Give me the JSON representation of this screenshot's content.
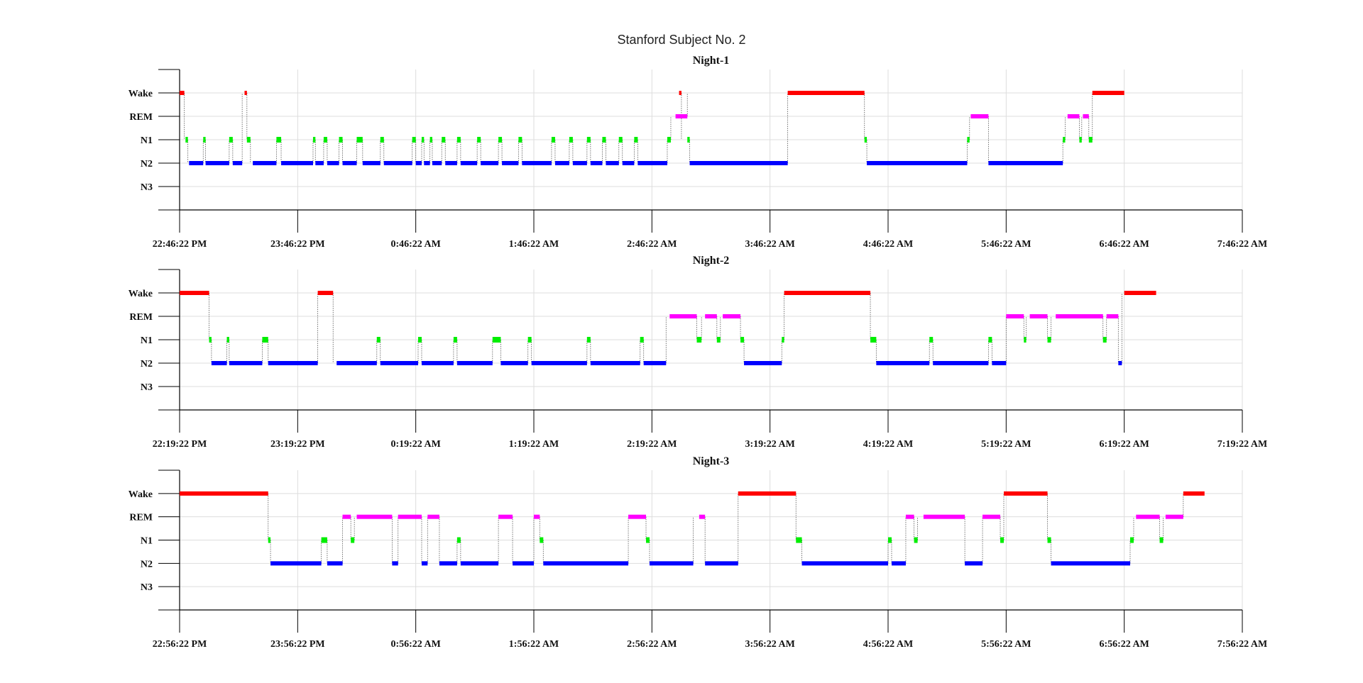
{
  "figure_title": "Stanford Subject No. 2",
  "colors": {
    "Wake": "#ff0000",
    "REM": "#ff00ff",
    "N1": "#00ee00",
    "N2": "#0000ff",
    "N3": "#0000aa",
    "grid": "#dddddd",
    "axis": "#000000"
  },
  "chart_data": [
    {
      "type": "line",
      "title": "Night-1",
      "yticklabels": [
        "Wake",
        "REM",
        "N1",
        "N2",
        "N3"
      ],
      "xticklabels": [
        "22:46:22 PM",
        "23:46:22 PM",
        "0:46:22 AM",
        "1:46:22 AM",
        "2:46:22 AM",
        "3:46:22 AM",
        "4:46:22 AM",
        "5:46:22 AM",
        "6:46:22 AM",
        "7:46:22 AM"
      ],
      "xlim_hours": [
        0,
        9
      ],
      "ylim": [
        -1,
        5
      ],
      "grid": true,
      "segments": [
        [
          "Wake",
          0.0,
          0.04
        ],
        [
          "N1",
          0.05,
          0.07
        ],
        [
          "N2",
          0.08,
          0.2
        ],
        [
          "N1",
          0.2,
          0.22
        ],
        [
          "N2",
          0.22,
          0.42
        ],
        [
          "N1",
          0.42,
          0.45
        ],
        [
          "N2",
          0.45,
          0.53
        ],
        [
          "Wake",
          0.55,
          0.57
        ],
        [
          "N1",
          0.57,
          0.6
        ],
        [
          "N2",
          0.62,
          0.82
        ],
        [
          "N1",
          0.82,
          0.86
        ],
        [
          "N2",
          0.86,
          1.13
        ],
        [
          "N1",
          1.13,
          1.15
        ],
        [
          "N2",
          1.15,
          1.22
        ],
        [
          "N1",
          1.22,
          1.25
        ],
        [
          "N2",
          1.25,
          1.35
        ],
        [
          "N1",
          1.35,
          1.38
        ],
        [
          "N2",
          1.38,
          1.5
        ],
        [
          "N1",
          1.5,
          1.55
        ],
        [
          "N2",
          1.55,
          1.7
        ],
        [
          "N1",
          1.7,
          1.73
        ],
        [
          "N2",
          1.73,
          1.97
        ],
        [
          "N1",
          1.97,
          2.0
        ],
        [
          "N2",
          2.0,
          2.05
        ],
        [
          "N1",
          2.05,
          2.07
        ],
        [
          "N2",
          2.07,
          2.12
        ],
        [
          "N1",
          2.12,
          2.14
        ],
        [
          "N2",
          2.14,
          2.22
        ],
        [
          "N1",
          2.22,
          2.25
        ],
        [
          "N2",
          2.25,
          2.35
        ],
        [
          "N1",
          2.35,
          2.38
        ],
        [
          "N2",
          2.38,
          2.52
        ],
        [
          "N1",
          2.52,
          2.55
        ],
        [
          "N2",
          2.55,
          2.7
        ],
        [
          "N1",
          2.7,
          2.73
        ],
        [
          "N2",
          2.73,
          2.87
        ],
        [
          "N1",
          2.87,
          2.9
        ],
        [
          "N2",
          2.9,
          3.15
        ],
        [
          "N1",
          3.15,
          3.18
        ],
        [
          "N2",
          3.18,
          3.3
        ],
        [
          "N1",
          3.3,
          3.33
        ],
        [
          "N2",
          3.33,
          3.45
        ],
        [
          "N1",
          3.45,
          3.48
        ],
        [
          "N2",
          3.48,
          3.58
        ],
        [
          "N1",
          3.58,
          3.61
        ],
        [
          "N2",
          3.61,
          3.72
        ],
        [
          "N1",
          3.72,
          3.75
        ],
        [
          "N2",
          3.75,
          3.85
        ],
        [
          "N1",
          3.85,
          3.88
        ],
        [
          "N2",
          3.88,
          4.13
        ],
        [
          "N1",
          4.13,
          4.16
        ],
        [
          "REM",
          4.2,
          4.3
        ],
        [
          "Wake",
          4.23,
          4.25
        ],
        [
          "N1",
          4.3,
          4.32
        ],
        [
          "N2",
          4.32,
          5.15
        ],
        [
          "Wake",
          5.15,
          5.8
        ],
        [
          "N1",
          5.8,
          5.82
        ],
        [
          "N2",
          5.82,
          6.67
        ],
        [
          "N1",
          6.67,
          6.69
        ],
        [
          "REM",
          6.7,
          6.85
        ],
        [
          "N2",
          6.85,
          7.48
        ],
        [
          "N1",
          7.48,
          7.5
        ],
        [
          "REM",
          7.52,
          7.62
        ],
        [
          "N1",
          7.62,
          7.64
        ],
        [
          "REM",
          7.65,
          7.7
        ],
        [
          "N1",
          7.7,
          7.73
        ],
        [
          "Wake",
          7.73,
          8.0
        ]
      ]
    },
    {
      "type": "line",
      "title": "Night-2",
      "yticklabels": [
        "Wake",
        "REM",
        "N1",
        "N2",
        "N3"
      ],
      "xticklabels": [
        "22:19:22 PM",
        "23:19:22 PM",
        "0:19:22 AM",
        "1:19:22 AM",
        "2:19:22 AM",
        "3:19:22 AM",
        "4:19:22 AM",
        "5:19:22 AM",
        "6:19:22 AM",
        "7:19:22 AM"
      ],
      "xlim_hours": [
        0,
        9
      ],
      "ylim": [
        -1,
        5
      ],
      "grid": true,
      "segments": [
        [
          "Wake",
          0.0,
          0.25
        ],
        [
          "N1",
          0.25,
          0.27
        ],
        [
          "N2",
          0.27,
          0.4
        ],
        [
          "N1",
          0.4,
          0.42
        ],
        [
          "N2",
          0.42,
          0.7
        ],
        [
          "N1",
          0.7,
          0.75
        ],
        [
          "N2",
          0.75,
          1.17
        ],
        [
          "Wake",
          1.17,
          1.3
        ],
        [
          "N2",
          1.33,
          1.67
        ],
        [
          "N1",
          1.67,
          1.7
        ],
        [
          "N2",
          1.7,
          2.02
        ],
        [
          "N1",
          2.02,
          2.05
        ],
        [
          "N2",
          2.05,
          2.32
        ],
        [
          "N1",
          2.32,
          2.35
        ],
        [
          "N2",
          2.35,
          2.65
        ],
        [
          "N1",
          2.65,
          2.72
        ],
        [
          "N2",
          2.72,
          2.95
        ],
        [
          "N1",
          2.95,
          2.98
        ],
        [
          "N2",
          2.98,
          3.45
        ],
        [
          "N1",
          3.45,
          3.48
        ],
        [
          "N2",
          3.48,
          3.9
        ],
        [
          "N1",
          3.9,
          3.93
        ],
        [
          "N2",
          3.93,
          4.12
        ],
        [
          "REM",
          4.15,
          4.38
        ],
        [
          "N1",
          4.38,
          4.42
        ],
        [
          "REM",
          4.45,
          4.55
        ],
        [
          "N1",
          4.55,
          4.58
        ],
        [
          "REM",
          4.6,
          4.75
        ],
        [
          "N1",
          4.75,
          4.78
        ],
        [
          "N2",
          4.78,
          5.1
        ],
        [
          "N1",
          5.1,
          5.12
        ],
        [
          "Wake",
          5.12,
          5.85
        ],
        [
          "N1",
          5.85,
          5.9
        ],
        [
          "N2",
          5.9,
          6.35
        ],
        [
          "N1",
          6.35,
          6.38
        ],
        [
          "N2",
          6.38,
          6.85
        ],
        [
          "N1",
          6.85,
          6.88
        ],
        [
          "N2",
          6.88,
          7.0
        ],
        [
          "REM",
          7.0,
          7.15
        ],
        [
          "N1",
          7.15,
          7.17
        ],
        [
          "REM",
          7.2,
          7.35
        ],
        [
          "N1",
          7.35,
          7.38
        ],
        [
          "REM",
          7.42,
          7.82
        ],
        [
          "N1",
          7.82,
          7.85
        ],
        [
          "REM",
          7.85,
          7.95
        ],
        [
          "N2",
          7.95,
          7.98
        ],
        [
          "Wake",
          8.0,
          8.27
        ]
      ]
    },
    {
      "type": "line",
      "title": "Night-3",
      "yticklabels": [
        "Wake",
        "REM",
        "N1",
        "N2",
        "N3"
      ],
      "xticklabels": [
        "22:56:22 PM",
        "23:56:22 PM",
        "0:56:22 AM",
        "1:56:22 AM",
        "2:56:22 AM",
        "3:56:22 AM",
        "4:56:22 AM",
        "5:56:22 AM",
        "6:56:22 AM",
        "7:56:22 AM"
      ],
      "xlim_hours": [
        0,
        9
      ],
      "ylim": [
        -1,
        5
      ],
      "grid": true,
      "segments": [
        [
          "Wake",
          0.0,
          0.75
        ],
        [
          "N1",
          0.75,
          0.77
        ],
        [
          "N2",
          0.77,
          1.2
        ],
        [
          "N1",
          1.2,
          1.25
        ],
        [
          "N2",
          1.25,
          1.38
        ],
        [
          "REM",
          1.38,
          1.45
        ],
        [
          "N1",
          1.45,
          1.48
        ],
        [
          "REM",
          1.5,
          1.8
        ],
        [
          "N2",
          1.8,
          1.85
        ],
        [
          "REM",
          1.85,
          2.05
        ],
        [
          "N2",
          2.05,
          2.1
        ],
        [
          "REM",
          2.1,
          2.2
        ],
        [
          "N2",
          2.2,
          2.35
        ],
        [
          "N1",
          2.35,
          2.38
        ],
        [
          "N2",
          2.38,
          2.7
        ],
        [
          "REM",
          2.7,
          2.82
        ],
        [
          "N2",
          2.82,
          3.0
        ],
        [
          "REM",
          3.0,
          3.05
        ],
        [
          "N1",
          3.05,
          3.08
        ],
        [
          "N2",
          3.08,
          3.8
        ],
        [
          "REM",
          3.8,
          3.95
        ],
        [
          "N1",
          3.95,
          3.98
        ],
        [
          "N2",
          3.98,
          4.35
        ],
        [
          "REM",
          4.4,
          4.45
        ],
        [
          "N2",
          4.45,
          4.73
        ],
        [
          "Wake",
          4.73,
          5.22
        ],
        [
          "N1",
          5.22,
          5.27
        ],
        [
          "N2",
          5.27,
          6.0
        ],
        [
          "N1",
          6.0,
          6.03
        ],
        [
          "N2",
          6.03,
          6.15
        ],
        [
          "REM",
          6.15,
          6.22
        ],
        [
          "N1",
          6.22,
          6.25
        ],
        [
          "REM",
          6.3,
          6.65
        ],
        [
          "N2",
          6.65,
          6.8
        ],
        [
          "REM",
          6.8,
          6.95
        ],
        [
          "N1",
          6.95,
          6.98
        ],
        [
          "Wake",
          6.98,
          7.35
        ],
        [
          "N1",
          7.35,
          7.38
        ],
        [
          "N2",
          7.38,
          8.05
        ],
        [
          "N1",
          8.05,
          8.08
        ],
        [
          "REM",
          8.1,
          8.3
        ],
        [
          "N1",
          8.3,
          8.33
        ],
        [
          "REM",
          8.35,
          8.5
        ],
        [
          "Wake",
          8.5,
          8.68
        ]
      ]
    }
  ]
}
